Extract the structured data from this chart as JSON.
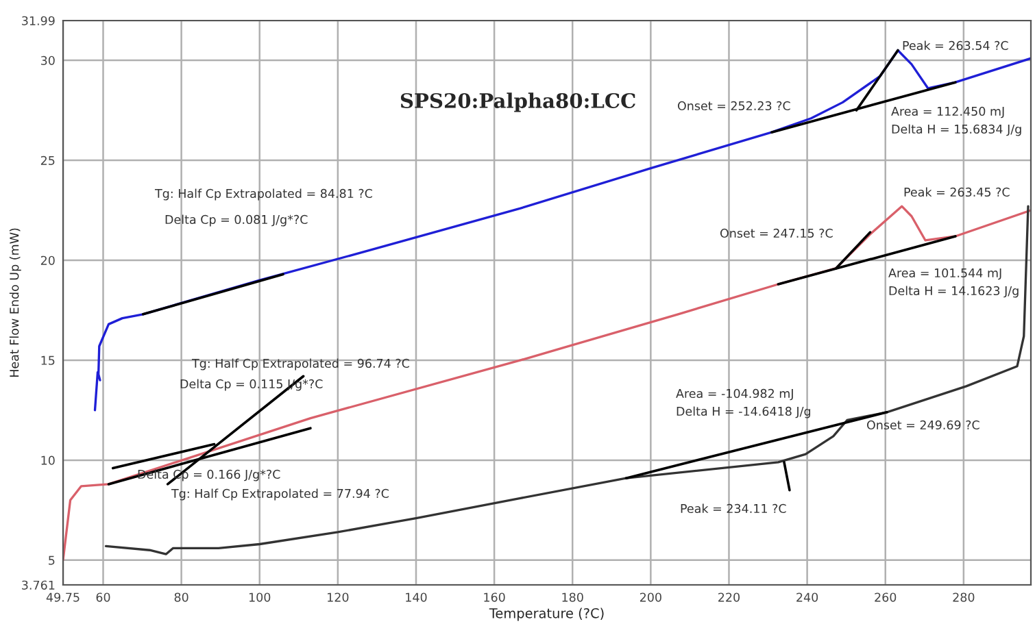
{
  "chart_data": {
    "type": "line",
    "title": "SPS20:Palpha80:LCC",
    "xlabel": "Temperature (?C)",
    "ylabel": "Heat Flow Endo Up (mW)",
    "xlim": [
      49.75,
      297.2
    ],
    "ylim": [
      3.761,
      31.99
    ],
    "xticks": [
      49.75,
      60,
      80,
      100,
      120,
      140,
      160,
      180,
      200,
      220,
      240,
      260,
      280
    ],
    "yticks": [
      3.761,
      5,
      10,
      15,
      20,
      25,
      30,
      31.99
    ],
    "grid": true,
    "legend": false,
    "marker": "none",
    "line_style": "solid",
    "series": [
      {
        "color": "#1f1fd6",
        "x": [
          57.9,
          58.6,
          59.2,
          58.8,
          59.0,
          61.4,
          64.9,
          70.2,
          100,
          130,
          166.7,
          200,
          230.9,
          241,
          249.1,
          258.6,
          263.2,
          266.7,
          270.9,
          277.9,
          297.2
        ],
        "values": [
          12.5,
          14.4,
          14.0,
          14.3,
          15.7,
          16.8,
          17.1,
          17.3,
          19.0,
          20.6,
          22.6,
          24.6,
          26.4,
          27.1,
          27.9,
          29.2,
          30.5,
          29.8,
          28.6,
          28.9,
          30.1
        ]
      },
      {
        "color": "#d9606a",
        "x": [
          49.75,
          51.6,
          54.4,
          61.4,
          113,
          166.7,
          207,
          232.6,
          247.4,
          256.1,
          264.2,
          266.7,
          270.2,
          277.9,
          297.2
        ],
        "values": [
          5.0,
          8.0,
          8.7,
          8.8,
          12.1,
          15.0,
          17.3,
          18.8,
          19.6,
          21.3,
          22.7,
          22.2,
          21.0,
          21.2,
          22.5
        ]
      },
      {
        "color": "#333333",
        "x": [
          60.7,
          71.9,
          76.1,
          77.9,
          89.5,
          100,
          120,
          140,
          166.7,
          193.7,
          232.6,
          239.6,
          246.7,
          250.2,
          260.4,
          280.7,
          293.7,
          295.4,
          296.5
        ],
        "values": [
          5.7,
          5.5,
          5.3,
          5.6,
          5.6,
          5.8,
          6.4,
          7.1,
          8.1,
          9.1,
          9.9,
          10.3,
          11.2,
          12.0,
          12.4,
          13.7,
          14.7,
          16.2,
          22.7
        ]
      },
      {
        "color": "#000000",
        "x": [
          70.2,
          106
        ],
        "values": [
          17.3,
          19.3
        ]
      },
      {
        "color": "#000000",
        "x": [
          230.9,
          277.9
        ],
        "values": [
          26.4,
          28.9
        ]
      },
      {
        "color": "#000000",
        "x": [
          252.6,
          263.2
        ],
        "values": [
          27.5,
          30.5
        ]
      },
      {
        "color": "#000000",
        "x": [
          232.6,
          277.9
        ],
        "values": [
          18.8,
          21.2
        ]
      },
      {
        "color": "#000000",
        "x": [
          247.4,
          256.1
        ],
        "values": [
          19.6,
          21.4
        ]
      },
      {
        "color": "#000000",
        "x": [
          61.4,
          113
        ],
        "values": [
          8.8,
          11.6
        ]
      },
      {
        "color": "#000000",
        "x": [
          62.5,
          88.4
        ],
        "values": [
          9.6,
          10.8
        ]
      },
      {
        "color": "#000000",
        "x": [
          76.5,
          111.2
        ],
        "values": [
          8.8,
          14.2
        ]
      },
      {
        "color": "#000000",
        "x": [
          193.7,
          260.4
        ],
        "values": [
          9.1,
          12.4
        ]
      },
      {
        "color": "#000000",
        "x": [
          234.11,
          235.5
        ],
        "values": [
          9.9,
          8.5
        ]
      }
    ],
    "annotations": [
      "Peak = 263.54 ?C",
      "Onset = 252.23 ?C",
      "Area = 112.450 mJ",
      "Delta H = 15.6834 J/g",
      "Tg: Half Cp Extrapolated = 84.81 ?C",
      "Delta Cp = 0.081 J/g*?C",
      "Peak = 263.45 ?C",
      "Onset = 247.15 ?C",
      "Area = 101.544 mJ",
      "Delta H = 14.1623 J/g",
      "Tg: Half Cp Extrapolated = 96.74 ?C",
      "Delta Cp = 0.115 J/g*?C",
      "Delta Cp = 0.166 J/g*?C",
      "Tg: Half Cp Extrapolated = 77.94 ?C",
      "Area = -104.982 mJ",
      "Delta H = -14.6418 J/g",
      "Onset = 249.69 ?C",
      "Peak = 234.11 ?C"
    ]
  }
}
